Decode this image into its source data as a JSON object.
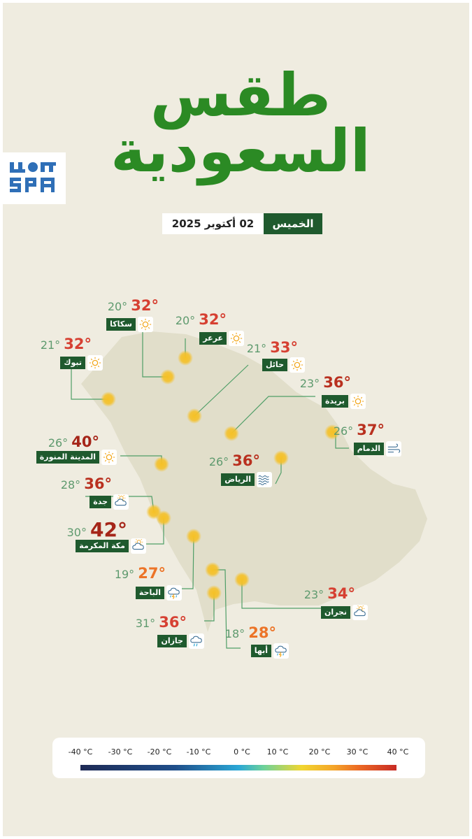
{
  "title": {
    "line1": "طقس",
    "line2": "السعودية"
  },
  "logo": {
    "text": "SPA",
    "alt": "واس"
  },
  "date": {
    "day": "الخميس",
    "text": "02 أكتوبر 2025"
  },
  "cities": [
    {
      "name": "سكاكا",
      "min": "20°",
      "max": "32°",
      "icon": "sun-icon",
      "color": "#d64032"
    },
    {
      "name": "عرعر",
      "min": "20°",
      "max": "32°",
      "icon": "sun-icon",
      "color": "#d64032"
    },
    {
      "name": "تبوك",
      "min": "21°",
      "max": "32°",
      "icon": "sun-icon",
      "color": "#d64032"
    },
    {
      "name": "حائل",
      "min": "21°",
      "max": "33°",
      "icon": "sun-icon",
      "color": "#d64032"
    },
    {
      "name": "بريدة",
      "min": "23°",
      "max": "36°",
      "icon": "sun-icon",
      "color": "#b9301f"
    },
    {
      "name": "الدمام",
      "min": "26°",
      "max": "37°",
      "icon": "wind-icon",
      "color": "#b9301f"
    },
    {
      "name": "المدينة المنورة",
      "min": "26°",
      "max": "40°",
      "icon": "sun-icon",
      "color": "#a52519"
    },
    {
      "name": "الرياض",
      "min": "26°",
      "max": "36°",
      "icon": "haze-icon",
      "color": "#b9301f"
    },
    {
      "name": "جدة",
      "min": "28°",
      "max": "36°",
      "icon": "partly-cloudy-icon",
      "color": "#b9301f"
    },
    {
      "name": "مكة المكرمة",
      "min": "30°",
      "max": "42°",
      "icon": "partly-cloudy-icon",
      "color": "#a52519"
    },
    {
      "name": "الباحة",
      "min": "19°",
      "max": "27°",
      "icon": "thunder-rain-icon",
      "color": "#ec7428"
    },
    {
      "name": "نجران",
      "min": "23°",
      "max": "34°",
      "icon": "partly-cloudy-icon",
      "color": "#d64032"
    },
    {
      "name": "جازان",
      "min": "31°",
      "max": "36°",
      "icon": "rain-cloud-icon",
      "color": "#d64032"
    },
    {
      "name": "أبها",
      "min": "18°",
      "max": "28°",
      "icon": "thunder-rain-icon",
      "color": "#ec7428"
    }
  ],
  "legend": {
    "ticks": [
      "-40 °C",
      "-30 °C",
      "-20 °C",
      "-10 °C",
      "0 °C",
      "10 °C",
      "20 °C",
      "30 °C",
      "40 °C"
    ],
    "colors": [
      "#1e2a55",
      "#1f4e8a",
      "#2aa7d6",
      "#6dd29a",
      "#f1d630",
      "#f4a629",
      "#ec6a24",
      "#c82a24"
    ]
  }
}
